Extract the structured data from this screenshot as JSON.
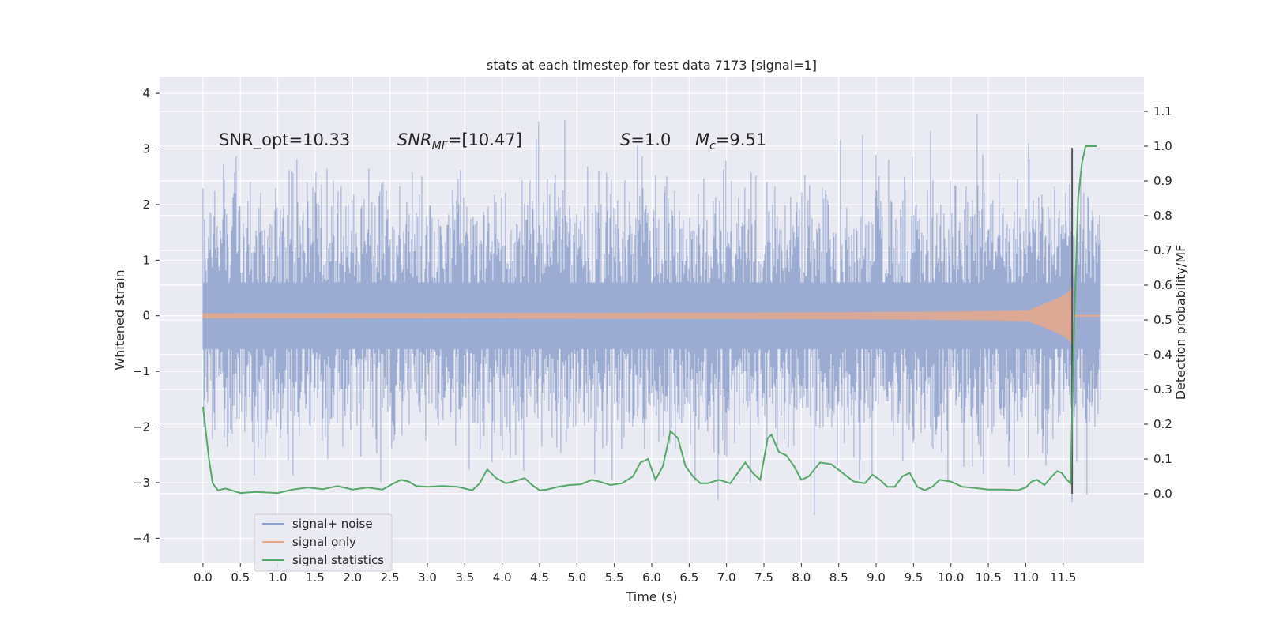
{
  "chart_data": {
    "type": "line",
    "title": "stats at each timestep for test data 7173 [signal=1]",
    "xlabel": "Time (s)",
    "ylabel": "Whitened strain",
    "ylabel_right": "Detection probability/MF",
    "xlim": [
      -0.58,
      12.58
    ],
    "ylim": [
      -4.45,
      4.3
    ],
    "ylim_right": [
      -0.2,
      1.2
    ],
    "x_ticks": [
      0.0,
      0.5,
      1.0,
      1.5,
      2.0,
      2.5,
      3.0,
      3.5,
      4.0,
      4.5,
      5.0,
      5.5,
      6.0,
      6.5,
      7.0,
      7.5,
      8.0,
      8.5,
      9.0,
      9.5,
      10.0,
      10.5,
      11.0,
      11.5
    ],
    "x_tick_labels": [
      "0.0",
      "0.5",
      "1.0",
      "1.5",
      "2.0",
      "2.5",
      "3.0",
      "3.5",
      "4.0",
      "4.5",
      "5.0",
      "5.5",
      "6.0",
      "6.5",
      "7.0",
      "7.5",
      "8.0",
      "8.5",
      "9.0",
      "9.5",
      "10.0",
      "10.5",
      "11.0",
      "11.5"
    ],
    "y_ticks": [
      4,
      3,
      2,
      1,
      0,
      -1,
      -2,
      -3,
      -4
    ],
    "y_tick_labels": [
      "4",
      "3",
      "2",
      "1",
      "0",
      "−1",
      "−2",
      "−3",
      "−4"
    ],
    "y_right_ticks": [
      1.1,
      1.0,
      0.9,
      0.8,
      0.7,
      0.6,
      0.5,
      0.4,
      0.3,
      0.2,
      0.1,
      0.0
    ],
    "y_right_tick_labels": [
      "1.1",
      "1.0",
      "0.9",
      "0.8",
      "0.7",
      "0.6",
      "0.5",
      "0.4",
      "0.3",
      "0.2",
      "0.1",
      "0.0"
    ],
    "grid": true,
    "legend_position": "lower-left",
    "legend": [
      {
        "label": "signal+ noise",
        "color": "#8da0cb"
      },
      {
        "label": "signal only",
        "color": "#e8a88a"
      },
      {
        "label": "signal statistics",
        "color": "#55a868"
      }
    ],
    "annotations": {
      "snr_opt": "SNR_opt=10.33",
      "snr_mf_main": "SNR",
      "snr_mf_sub": "MF",
      "snr_mf_value": "=[10.47]",
      "s_main": "S",
      "s_value": "=1.0",
      "mc_main": "M",
      "mc_sub": "c",
      "mc_value": "=9.51"
    },
    "noise": {
      "x_start": 0.0,
      "x_end": 12.0,
      "sigma": 1.0,
      "color": "#8da0cb"
    },
    "signal_only": {
      "x_start": 0.0,
      "merger_time": 11.62,
      "peak_amplitude": 0.8,
      "color": "#e8a88a"
    },
    "signal_statistics": {
      "color": "#55a868",
      "x": [
        0.0,
        0.08,
        0.13,
        0.2,
        0.3,
        0.5,
        0.7,
        1.0,
        1.2,
        1.4,
        1.6,
        1.8,
        2.0,
        2.2,
        2.4,
        2.55,
        2.65,
        2.75,
        2.85,
        3.0,
        3.2,
        3.4,
        3.6,
        3.7,
        3.8,
        3.92,
        4.05,
        4.15,
        4.3,
        4.4,
        4.5,
        4.6,
        4.75,
        4.9,
        5.05,
        5.2,
        5.3,
        5.45,
        5.6,
        5.75,
        5.85,
        5.95,
        6.05,
        6.15,
        6.25,
        6.35,
        6.45,
        6.55,
        6.65,
        6.75,
        6.9,
        7.05,
        7.15,
        7.25,
        7.35,
        7.45,
        7.55,
        7.6,
        7.7,
        7.8,
        7.9,
        8.0,
        8.1,
        8.25,
        8.4,
        8.55,
        8.7,
        8.85,
        8.95,
        9.05,
        9.15,
        9.25,
        9.35,
        9.45,
        9.55,
        9.65,
        9.75,
        9.85,
        10.0,
        10.15,
        10.3,
        10.5,
        10.7,
        10.9,
        11.0,
        11.08,
        11.15,
        11.25,
        11.35,
        11.42,
        11.48,
        11.55,
        11.6,
        11.65,
        11.7,
        11.75,
        11.8,
        11.9,
        11.95
      ],
      "values": [
        0.25,
        0.1,
        0.03,
        0.01,
        0.015,
        0.002,
        0.005,
        0.002,
        0.012,
        0.018,
        0.013,
        0.022,
        0.012,
        0.018,
        0.012,
        0.03,
        0.04,
        0.035,
        0.022,
        0.02,
        0.022,
        0.02,
        0.01,
        0.03,
        0.07,
        0.045,
        0.03,
        0.035,
        0.045,
        0.025,
        0.01,
        0.012,
        0.02,
        0.025,
        0.027,
        0.04,
        0.035,
        0.025,
        0.03,
        0.05,
        0.09,
        0.1,
        0.04,
        0.08,
        0.18,
        0.16,
        0.08,
        0.05,
        0.03,
        0.03,
        0.04,
        0.03,
        0.06,
        0.09,
        0.06,
        0.04,
        0.16,
        0.17,
        0.12,
        0.11,
        0.08,
        0.04,
        0.05,
        0.09,
        0.085,
        0.06,
        0.035,
        0.03,
        0.055,
        0.04,
        0.02,
        0.02,
        0.05,
        0.06,
        0.02,
        0.01,
        0.02,
        0.04,
        0.035,
        0.02,
        0.017,
        0.012,
        0.012,
        0.01,
        0.018,
        0.035,
        0.04,
        0.025,
        0.05,
        0.065,
        0.06,
        0.04,
        0.03,
        0.5,
        0.85,
        0.95,
        1.0,
        1.0,
        1.0
      ]
    },
    "merger_marker": {
      "x": 11.62,
      "y_range": [
        -3.2,
        3.02
      ],
      "color": "#555555"
    }
  }
}
